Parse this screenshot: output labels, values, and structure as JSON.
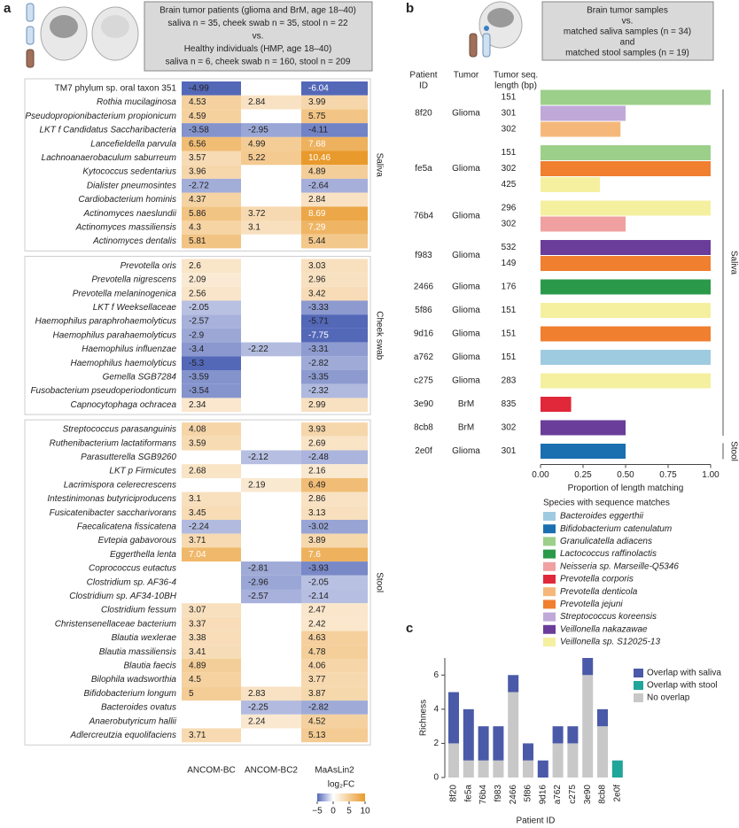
{
  "chart_data": [
    {
      "type": "heatmap",
      "panel_label": "a",
      "header": [
        "Brain tumor patients (glioma and BrM, age 18–40)",
        "saliva n = 35, cheek swab n = 35, stool n = 22",
        "vs.",
        "Healthy individuals (HMP, age 18–40)",
        "saliva n = 6, cheek swab n = 160, stool n = 209"
      ],
      "columns": [
        "ANCOM-BC",
        "ANCOM-BC2",
        "MaAsLin2"
      ],
      "groups": [
        {
          "name": "Saliva",
          "rows": [
            {
              "name": "TM7 phylum sp. oral taxon 351",
              "values": [
                -4.99,
                null,
                -6.04
              ]
            },
            {
              "name": "Rothia mucilaginosa",
              "values": [
                4.53,
                2.84,
                3.99
              ]
            },
            {
              "name": "Pseudopropionibacterium propionicum",
              "values": [
                4.59,
                null,
                5.75
              ]
            },
            {
              "name": "LKT f  Candidatus Saccharibacteria",
              "values": [
                -3.58,
                -2.95,
                -4.11
              ]
            },
            {
              "name": "Lancefieldella parvula",
              "values": [
                6.56,
                4.99,
                7.68
              ]
            },
            {
              "name": "Lachnoanaerobaculum saburreum",
              "values": [
                3.57,
                5.22,
                10.46
              ]
            },
            {
              "name": "Kytococcus sedentarius",
              "values": [
                3.96,
                null,
                4.89
              ]
            },
            {
              "name": "Dialister pneumosintes",
              "values": [
                -2.72,
                null,
                -2.64
              ]
            },
            {
              "name": "Cardiobacterium hominis",
              "values": [
                4.37,
                null,
                2.84
              ]
            },
            {
              "name": "Actinomyces naeslundii",
              "values": [
                5.86,
                3.72,
                8.69
              ]
            },
            {
              "name": "Actinomyces massiliensis",
              "values": [
                4.3,
                3.1,
                7.29
              ]
            },
            {
              "name": "Actinomyces dentalis",
              "values": [
                5.81,
                null,
                5.44
              ]
            }
          ]
        },
        {
          "name": "Cheek swab",
          "rows": [
            {
              "name": "Prevotella oris",
              "values": [
                2.6,
                null,
                3.03
              ]
            },
            {
              "name": "Prevotella nigrescens",
              "values": [
                2.09,
                null,
                2.96
              ]
            },
            {
              "name": "Prevotella melaninogenica",
              "values": [
                2.56,
                null,
                3.42
              ]
            },
            {
              "name": "LKT f  Weeksellaceae",
              "values": [
                -2.05,
                null,
                -3.33
              ]
            },
            {
              "name": "Haemophilus paraphrohaemolyticus",
              "values": [
                -2.57,
                null,
                -5.71
              ]
            },
            {
              "name": "Haemophilus parahaemolyticus",
              "values": [
                -2.9,
                null,
                -7.75
              ]
            },
            {
              "name": "Haemophilus influenzae",
              "values": [
                -3.4,
                -2.22,
                -3.31
              ]
            },
            {
              "name": "Haemophilus haemolyticus",
              "values": [
                -5.3,
                null,
                -2.82
              ]
            },
            {
              "name": "Gemella SGB7284",
              "values": [
                -3.59,
                null,
                -3.35
              ]
            },
            {
              "name": "Fusobacterium pseudoperiodonticum",
              "values": [
                -3.54,
                null,
                -2.32
              ]
            },
            {
              "name": "Capnocytophaga ochracea",
              "values": [
                2.34,
                null,
                2.99
              ]
            }
          ]
        },
        {
          "name": "Stool",
          "rows": [
            {
              "name": "Streptococcus parasanguinis",
              "values": [
                4.08,
                null,
                3.93
              ]
            },
            {
              "name": "Ruthenibacterium lactatiformans",
              "values": [
                3.59,
                null,
                2.69
              ]
            },
            {
              "name": "Parasutterella SGB9260",
              "values": [
                null,
                -2.12,
                -2.48
              ]
            },
            {
              "name": "LKT p  Firmicutes",
              "values": [
                2.68,
                null,
                2.16
              ]
            },
            {
              "name": "Lacrimispora celerecrescens",
              "values": [
                null,
                2.19,
                6.49
              ]
            },
            {
              "name": "Intestinimonas butyriciproducens",
              "values": [
                3.1,
                null,
                2.86
              ]
            },
            {
              "name": "Fusicatenibacter saccharivorans",
              "values": [
                3.45,
                null,
                3.13
              ]
            },
            {
              "name": "Faecalicatena fissicatena",
              "values": [
                -2.24,
                null,
                -3.02
              ]
            },
            {
              "name": "Evtepia gabavorous",
              "values": [
                3.71,
                null,
                3.89
              ]
            },
            {
              "name": "Eggerthella lenta",
              "values": [
                7.04,
                null,
                7.6
              ]
            },
            {
              "name": "Coprococcus eutactus",
              "values": [
                null,
                -2.81,
                -3.93
              ]
            },
            {
              "name": "Clostridium sp. AF36-4",
              "values": [
                null,
                -2.96,
                -2.05
              ]
            },
            {
              "name": "Clostridium sp. AF34-10BH",
              "values": [
                null,
                -2.57,
                -2.14
              ]
            },
            {
              "name": "Clostridium fessum",
              "values": [
                3.07,
                null,
                2.47
              ]
            },
            {
              "name": "Christensenellaceae bacterium",
              "values": [
                3.37,
                null,
                2.42
              ]
            },
            {
              "name": "Blautia wexlerae",
              "values": [
                3.38,
                null,
                4.63
              ]
            },
            {
              "name": "Blautia massiliensis",
              "values": [
                3.41,
                null,
                4.78
              ]
            },
            {
              "name": "Blautia faecis",
              "values": [
                4.89,
                null,
                4.06
              ]
            },
            {
              "name": "Bilophila wadsworthia",
              "values": [
                4.5,
                null,
                3.77
              ]
            },
            {
              "name": "Bifidobacterium longum",
              "values": [
                5,
                2.83,
                3.87
              ]
            },
            {
              "name": "Bacteroides ovatus",
              "values": [
                null,
                -2.25,
                -2.82
              ]
            },
            {
              "name": "Anaerobutyricum hallii",
              "values": [
                null,
                2.24,
                4.52
              ]
            },
            {
              "name": "Adlercreutzia equolifaciens",
              "values": [
                3.71,
                null,
                5.13
              ]
            }
          ]
        }
      ],
      "colorbar": {
        "title": "log₂FC",
        "lim": [
          -5,
          10
        ],
        "colors": [
          "#5468b8",
          "#ffffff",
          "#e99a2c"
        ],
        "ticks": [
          {
            "value": -5,
            "label": "−5"
          },
          0,
          5,
          10
        ]
      }
    },
    {
      "type": "bar",
      "orientation": "horizontal",
      "panel_label": "b",
      "header": [
        "Brain tumor samples",
        "vs.",
        "matched saliva samples (n = 34)",
        "and",
        "matched stool samples (n = 19)"
      ],
      "columns": [
        [
          "Patient",
          "ID"
        ],
        [
          "Tumor"
        ],
        [
          "Tumor seq.",
          "length (bp)"
        ]
      ],
      "sample_groups": [
        {
          "name": "Saliva",
          "rows": [
            {
              "patient": "8f20",
              "tumor": "Glioma",
              "matches": [
                {
                  "length": 151,
                  "value": 1.0,
                  "color": "#9ccf8a"
                },
                {
                  "length": 301,
                  "value": 0.5,
                  "color": "#c0a8d8"
                },
                {
                  "length": 302,
                  "value": 0.47,
                  "color": "#f5b87a"
                }
              ]
            },
            {
              "patient": "fe5a",
              "tumor": "Glioma",
              "matches": [
                {
                  "length": 151,
                  "value": 1.0,
                  "color": "#9ccf8a"
                },
                {
                  "length": 302,
                  "value": 1.0,
                  "color": "#f07f30"
                },
                {
                  "length": 425,
                  "value": 0.35,
                  "color": "#f5f0a0"
                }
              ]
            },
            {
              "patient": "76b4",
              "tumor": "Glioma",
              "matches": [
                {
                  "length": 296,
                  "value": 1.0,
                  "color": "#f5f0a0"
                },
                {
                  "length": 302,
                  "value": 0.5,
                  "color": "#f0a0a0"
                }
              ]
            },
            {
              "patient": "f983",
              "tumor": "Glioma",
              "matches": [
                {
                  "length": 532,
                  "value": 1.0,
                  "color": "#6a3d9a"
                },
                {
                  "length": 149,
                  "value": 1.0,
                  "color": "#f07f30"
                }
              ]
            },
            {
              "patient": "2466",
              "tumor": "Glioma",
              "matches": [
                {
                  "length": 176,
                  "value": 1.0,
                  "color": "#2a9a4a"
                }
              ]
            },
            {
              "patient": "5f86",
              "tumor": "Glioma",
              "matches": [
                {
                  "length": 151,
                  "value": 1.0,
                  "color": "#f5f0a0"
                }
              ]
            },
            {
              "patient": "9d16",
              "tumor": "Glioma",
              "matches": [
                {
                  "length": 151,
                  "value": 1.0,
                  "color": "#f07f30"
                }
              ]
            },
            {
              "patient": "a762",
              "tumor": "Glioma",
              "matches": [
                {
                  "length": 151,
                  "value": 1.0,
                  "color": "#9fcbe0"
                }
              ]
            },
            {
              "patient": "c275",
              "tumor": "Glioma",
              "matches": [
                {
                  "length": 283,
                  "value": 1.0,
                  "color": "#f5f0a0"
                }
              ]
            },
            {
              "patient": "3e90",
              "tumor": "BrM",
              "matches": [
                {
                  "length": 835,
                  "value": 0.18,
                  "color": "#e0283a"
                }
              ]
            },
            {
              "patient": "8cb8",
              "tumor": "BrM",
              "matches": [
                {
                  "length": 302,
                  "value": 0.5,
                  "color": "#6a3d9a"
                }
              ]
            }
          ]
        },
        {
          "name": "Stool",
          "rows": [
            {
              "patient": "2e0f",
              "tumor": "Glioma",
              "matches": [
                {
                  "length": 301,
                  "value": 0.5,
                  "color": "#1a6fb0"
                }
              ]
            }
          ]
        }
      ],
      "xlabel": "Proportion of length matching",
      "xlim": [
        0,
        1
      ],
      "xticks": [
        {
          "value": 0,
          "label": "0.00"
        },
        {
          "value": 0.25,
          "label": "0.25"
        },
        {
          "value": 0.5,
          "label": "0.50"
        },
        {
          "value": 0.75,
          "label": "0.75"
        },
        {
          "value": 1,
          "label": "1.00"
        }
      ],
      "legend_title": "Species with sequence matches",
      "legend": [
        {
          "name": "Bacteroides eggerthii",
          "color": "#9fcbe0"
        },
        {
          "name": "Bifidobacterium catenulatum",
          "color": "#1a6fb0"
        },
        {
          "name": "Granulicatella adiacens",
          "color": "#9ccf8a"
        },
        {
          "name": "Lactococcus raffinolactis",
          "color": "#2a9a4a"
        },
        {
          "name": "Neisseria sp. Marseille-Q5346",
          "color": "#f0a0a0"
        },
        {
          "name": "Prevotella corporis",
          "color": "#e0283a"
        },
        {
          "name": "Prevotella denticola",
          "color": "#f5b87a"
        },
        {
          "name": "Prevotella jejuni",
          "color": "#f07f30"
        },
        {
          "name": "Streptococcus koreensis",
          "color": "#c0a8d8"
        },
        {
          "name": "Veillonella nakazawae",
          "color": "#6a3d9a"
        },
        {
          "name": "Veillonella sp. S12025-13",
          "color": "#f5f0a0"
        }
      ]
    },
    {
      "type": "stacked_bar",
      "panel_label": "c",
      "categories": [
        "8f20",
        "fe5a",
        "76b4",
        "f983",
        "2466",
        "5f86",
        "9d16",
        "a762",
        "c275",
        "3e90",
        "8cb8",
        "2e0f"
      ],
      "series": [
        {
          "name": "Overlap with saliva",
          "color": "#4a5aa8",
          "values": [
            3,
            3,
            2,
            2,
            1,
            1,
            1,
            1,
            1,
            1,
            1,
            0
          ]
        },
        {
          "name": "Overlap with stool",
          "color": "#1fa59a",
          "values": [
            0,
            0,
            0,
            0,
            0,
            0,
            0,
            0,
            0,
            0,
            0,
            1
          ]
        },
        {
          "name": "No overlap",
          "color": "#c8c8c8",
          "values": [
            2,
            1,
            1,
            1,
            5,
            1,
            0,
            2,
            2,
            6,
            3,
            0
          ]
        }
      ],
      "xlabel": "Patient ID",
      "ylabel": "Richness",
      "ylim": [
        0,
        7
      ],
      "yticks": [
        0,
        2,
        4,
        6
      ]
    }
  ]
}
